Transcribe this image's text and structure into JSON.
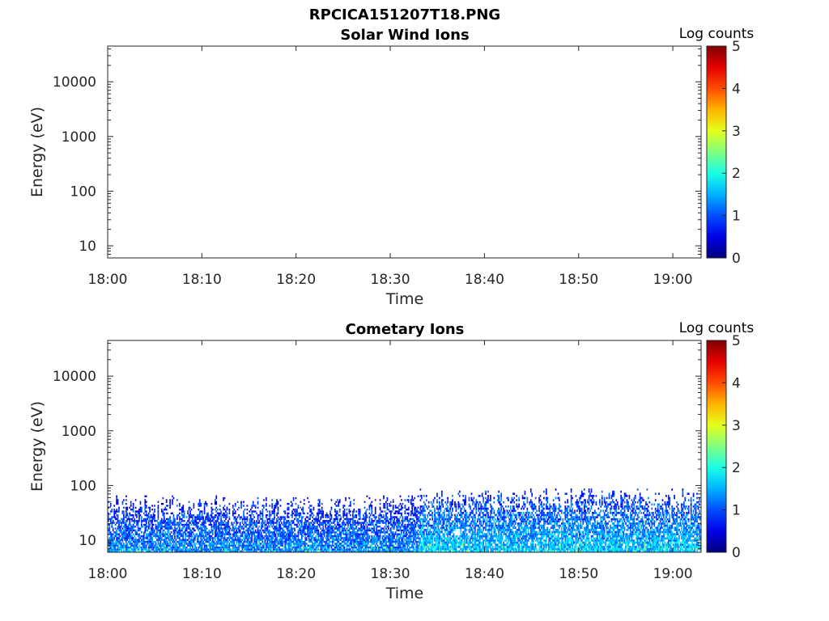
{
  "figure_title": "RPCICA151207T18.PNG",
  "chart_data": [
    {
      "type": "heatmap",
      "title": "Solar Wind Ions",
      "xlabel": "Time",
      "ylabel": "Energy (eV)",
      "x_ticks": [
        "18:00",
        "18:10",
        "18:20",
        "18:30",
        "18:40",
        "18:50",
        "19:00"
      ],
      "x_range": [
        "18:00",
        "19:03"
      ],
      "y_scale": "log",
      "y_ticks": [
        "10",
        "100",
        "1000",
        "10000"
      ],
      "y_range": [
        6,
        45000
      ],
      "colorbar": {
        "label": "Log counts",
        "ticks": [
          "0",
          "1",
          "2",
          "3",
          "4",
          "5"
        ],
        "range": [
          0,
          5
        ],
        "colormap": "jet"
      },
      "data": "empty (no counts recorded)"
    },
    {
      "type": "heatmap",
      "title": "Cometary Ions",
      "xlabel": "Time",
      "ylabel": "Energy (eV)",
      "x_ticks": [
        "18:00",
        "18:10",
        "18:20",
        "18:30",
        "18:40",
        "18:50",
        "19:00"
      ],
      "x_range": [
        "18:00",
        "19:03"
      ],
      "y_scale": "log",
      "y_ticks": [
        "10",
        "100",
        "1000",
        "10000"
      ],
      "y_range": [
        6,
        45000
      ],
      "colorbar": {
        "label": "Log counts",
        "ticks": [
          "0",
          "1",
          "2",
          "3",
          "4",
          "5"
        ],
        "range": [
          0,
          5
        ],
        "colormap": "jet"
      },
      "data_profile": {
        "time_segments": [
          "18:00",
          "18:28",
          "18:33",
          "19:03"
        ],
        "max_energy_eV": [
          60,
          60,
          80,
          80
        ],
        "typical_log_counts_low_energy": [
          1.3,
          1.3,
          1.6,
          1.8
        ],
        "peak_log_counts": 2.6
      }
    }
  ]
}
